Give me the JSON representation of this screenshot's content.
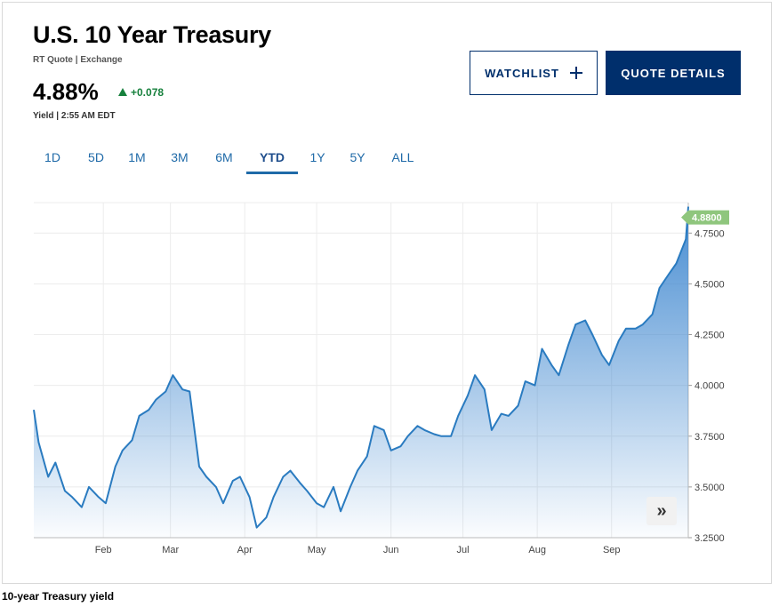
{
  "header": {
    "title": "U.S. 10 Year Treasury",
    "subtitle": "RT Quote | Exchange",
    "value": "4.88%",
    "change": "+0.078",
    "timestamp": "Yield | 2:55 AM EDT"
  },
  "buttons": {
    "watchlist": "WATCHLIST",
    "quote_details": "QUOTE DETAILS"
  },
  "ranges": [
    "1D",
    "5D",
    "1M",
    "3M",
    "6M",
    "YTD",
    "1Y",
    "5Y",
    "ALL"
  ],
  "active_range": "YTD",
  "caption": "10-year Treasury yield",
  "colors": {
    "line": "#2a7bc0",
    "fill_top": "#3d86cf",
    "last_badge": "#8fc67d",
    "accent": "#002f6c",
    "positive": "#16803c"
  },
  "chart_data": {
    "type": "area",
    "title": "",
    "xlabel": "",
    "ylabel": "",
    "x_tick_labels": [
      "Feb",
      "Mar",
      "Apr",
      "May",
      "Jun",
      "Jul",
      "Aug",
      "Sep"
    ],
    "x_ticks": [
      "2023-02-01",
      "2023-03-01",
      "2023-04-01",
      "2023-05-01",
      "2023-06-01",
      "2023-07-01",
      "2023-08-01",
      "2023-09-01"
    ],
    "y_tick_labels": [
      "3.2500",
      "3.5000",
      "3.7500",
      "4.0000",
      "4.2500",
      "4.5000",
      "4.7500"
    ],
    "ylim": [
      3.25,
      4.9
    ],
    "last_value_label": "4.8800",
    "grid": true,
    "series": [
      {
        "x": [
          "2023-01-03",
          "2023-01-05",
          "2023-01-09",
          "2023-01-12",
          "2023-01-16",
          "2023-01-19",
          "2023-01-23",
          "2023-01-26",
          "2023-01-30",
          "2023-02-02",
          "2023-02-06",
          "2023-02-09",
          "2023-02-13",
          "2023-02-16",
          "2023-02-20",
          "2023-02-23",
          "2023-02-27",
          "2023-03-02",
          "2023-03-06",
          "2023-03-09",
          "2023-03-13",
          "2023-03-16",
          "2023-03-20",
          "2023-03-23",
          "2023-03-27",
          "2023-03-30",
          "2023-04-03",
          "2023-04-06",
          "2023-04-10",
          "2023-04-13",
          "2023-04-17",
          "2023-04-20",
          "2023-04-24",
          "2023-04-27",
          "2023-05-01",
          "2023-05-04",
          "2023-05-08",
          "2023-05-11",
          "2023-05-15",
          "2023-05-18",
          "2023-05-22",
          "2023-05-25",
          "2023-05-29",
          "2023-06-01",
          "2023-06-05",
          "2023-06-08",
          "2023-06-12",
          "2023-06-15",
          "2023-06-19",
          "2023-06-22",
          "2023-06-26",
          "2023-06-29",
          "2023-07-03",
          "2023-07-06",
          "2023-07-10",
          "2023-07-13",
          "2023-07-17",
          "2023-07-20",
          "2023-07-24",
          "2023-07-27",
          "2023-07-31",
          "2023-08-03",
          "2023-08-07",
          "2023-08-10",
          "2023-08-14",
          "2023-08-17",
          "2023-08-21",
          "2023-08-24",
          "2023-08-28",
          "2023-08-31",
          "2023-09-04",
          "2023-09-07",
          "2023-09-11",
          "2023-09-14",
          "2023-09-18",
          "2023-09-21",
          "2023-09-25",
          "2023-09-28",
          "2023-10-02",
          "2023-10-03"
        ],
        "y": [
          3.88,
          3.72,
          3.55,
          3.62,
          3.48,
          3.45,
          3.4,
          3.5,
          3.45,
          3.42,
          3.6,
          3.68,
          3.73,
          3.85,
          3.88,
          3.93,
          3.97,
          4.05,
          3.98,
          3.97,
          3.6,
          3.55,
          3.5,
          3.42,
          3.53,
          3.55,
          3.45,
          3.3,
          3.35,
          3.45,
          3.55,
          3.58,
          3.52,
          3.48,
          3.42,
          3.4,
          3.5,
          3.38,
          3.5,
          3.58,
          3.65,
          3.8,
          3.78,
          3.68,
          3.7,
          3.75,
          3.8,
          3.78,
          3.76,
          3.75,
          3.75,
          3.85,
          3.95,
          4.05,
          3.98,
          3.78,
          3.86,
          3.85,
          3.9,
          4.02,
          4.0,
          4.18,
          4.1,
          4.05,
          4.2,
          4.3,
          4.32,
          4.25,
          4.15,
          4.1,
          4.22,
          4.28,
          4.28,
          4.3,
          4.35,
          4.48,
          4.55,
          4.6,
          4.72,
          4.88
        ]
      }
    ]
  }
}
